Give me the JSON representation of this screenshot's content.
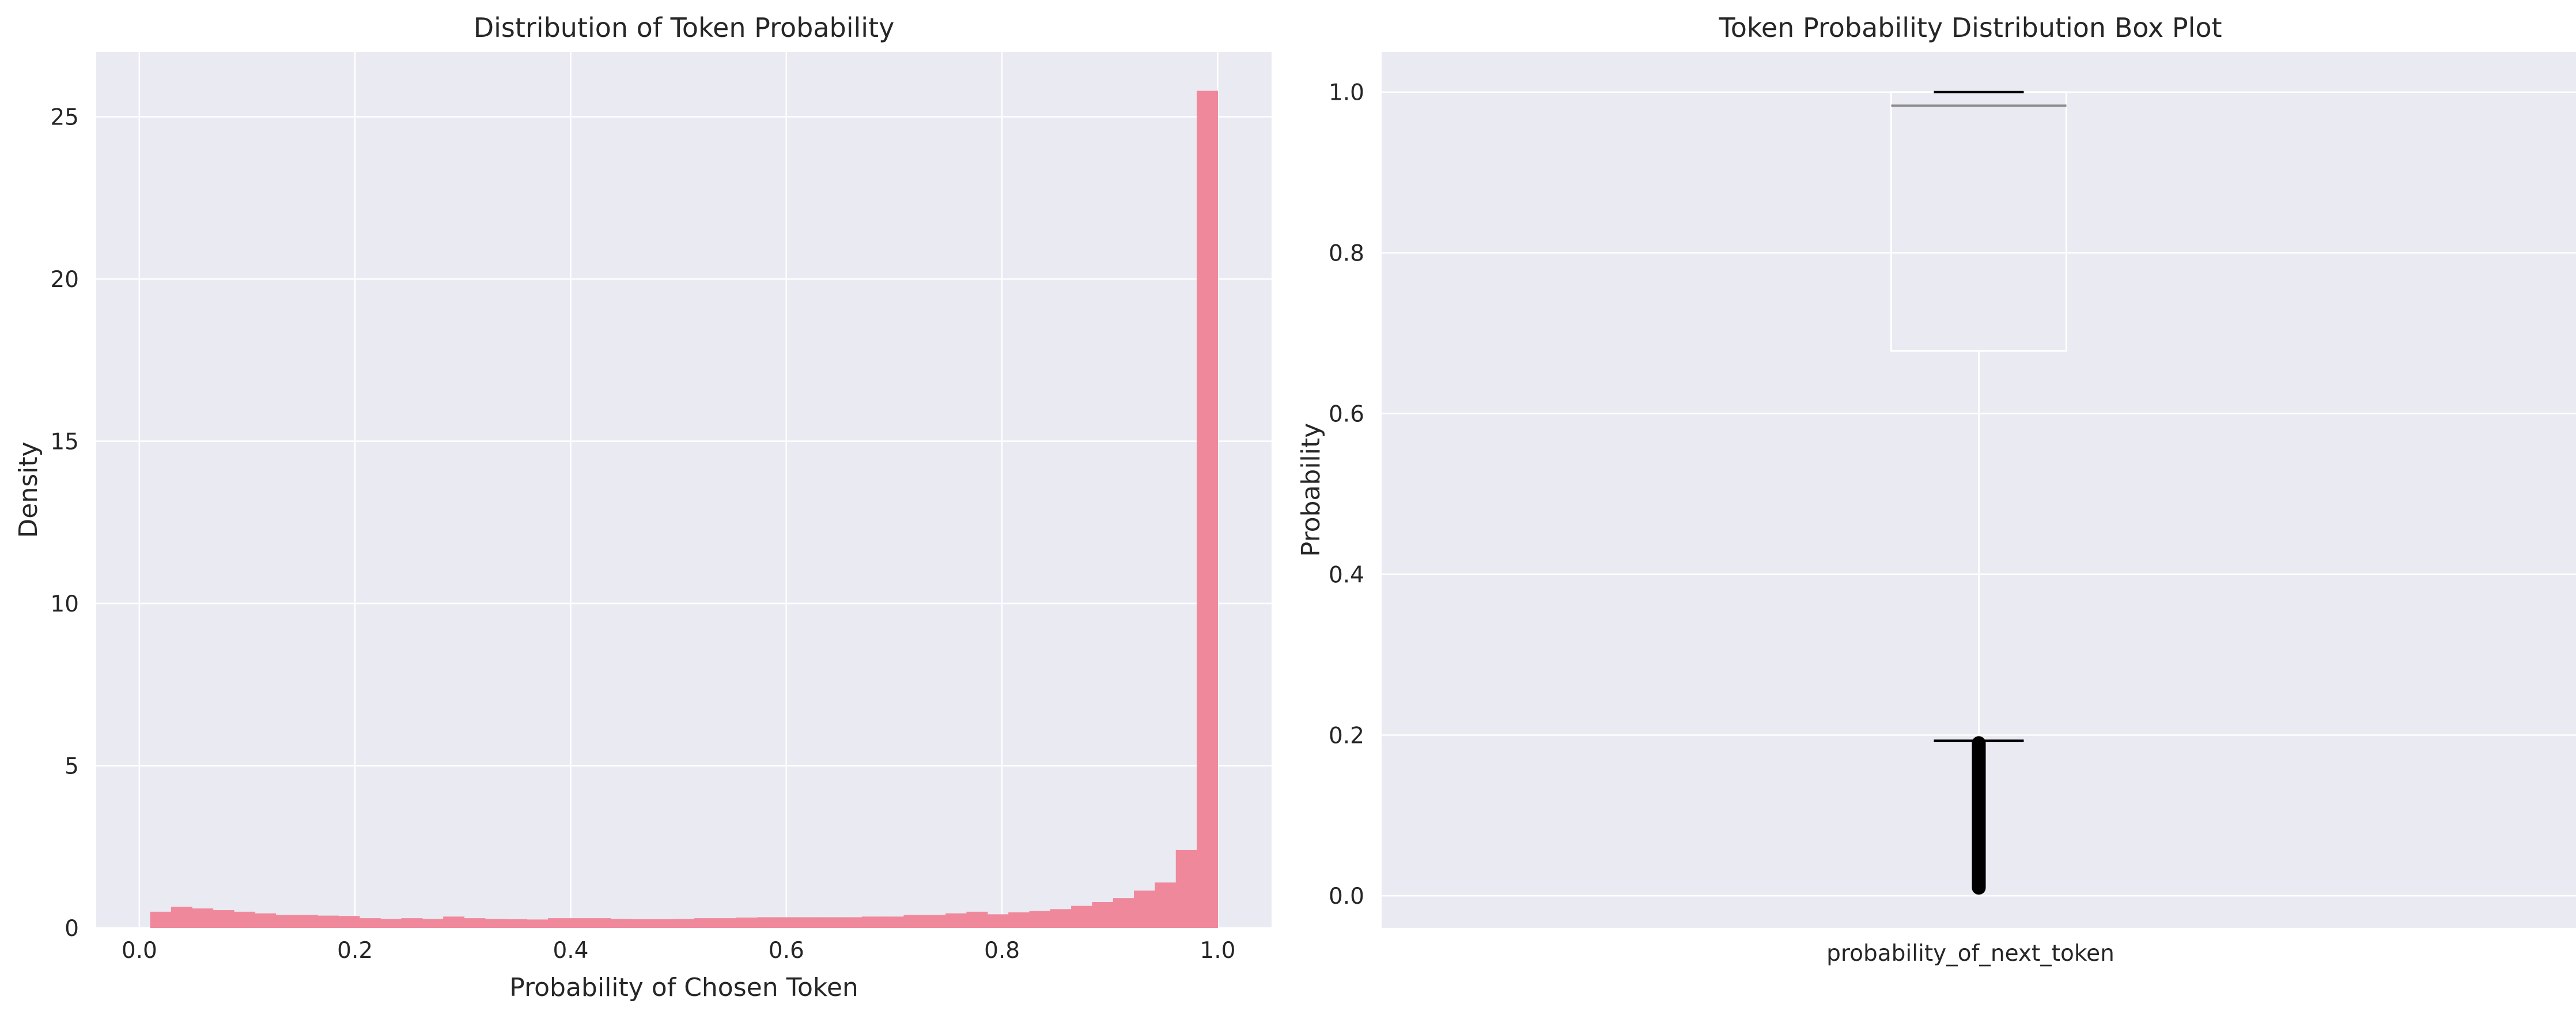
{
  "chart_data": [
    {
      "type": "histogram",
      "title": "Distribution of Token Probability",
      "xlabel": "Probability of Chosen Token",
      "ylabel": "Density",
      "xlim": [
        -0.04,
        1.05
      ],
      "ylim": [
        0,
        27
      ],
      "grid": true,
      "bar_color": "#f0889c",
      "xticks": [
        "0.0",
        "0.2",
        "0.4",
        "0.6",
        "0.8",
        "1.0"
      ],
      "yticks": [
        "0",
        "5",
        "10",
        "15",
        "20",
        "25"
      ],
      "bin_range": [
        0.01,
        1.0
      ],
      "densities": [
        0.5,
        0.65,
        0.6,
        0.55,
        0.5,
        0.45,
        0.4,
        0.4,
        0.38,
        0.37,
        0.3,
        0.28,
        0.3,
        0.28,
        0.35,
        0.3,
        0.28,
        0.27,
        0.26,
        0.3,
        0.3,
        0.3,
        0.28,
        0.27,
        0.27,
        0.28,
        0.3,
        0.3,
        0.32,
        0.33,
        0.33,
        0.33,
        0.33,
        0.33,
        0.35,
        0.35,
        0.4,
        0.4,
        0.45,
        0.5,
        0.42,
        0.48,
        0.52,
        0.58,
        0.68,
        0.8,
        0.92,
        1.15,
        1.4,
        2.4,
        25.8
      ]
    },
    {
      "type": "box",
      "title": "Token Probability Distribution Box Plot",
      "xlabel": "",
      "ylabel": "Probability",
      "category": "probability_of_next_token",
      "ylim": [
        -0.04,
        1.05
      ],
      "grid": true,
      "yticks": [
        "0.0",
        "0.2",
        "0.4",
        "0.6",
        "0.8",
        "1.0"
      ],
      "whisker_low": 0.193,
      "q1": 0.678,
      "median": 0.983,
      "q3": 1.0,
      "whisker_high": 1.0,
      "outlier_range": [
        0.01,
        0.19
      ]
    }
  ]
}
